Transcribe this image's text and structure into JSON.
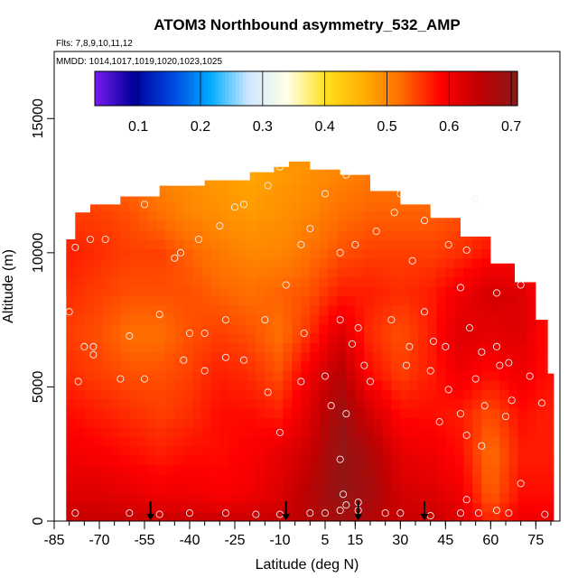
{
  "chart_data": {
    "type": "heatmap",
    "title": "ATOM3 Northbound asymmetry_532_AMP",
    "annotations": [
      "Flts: 7,8,9,10,11,12",
      "MMDD: 1014,1017,1019,1020,1023,1025"
    ],
    "xlabel": "Latitude (deg N)",
    "ylabel": "Altitude (m)",
    "xlim": [
      -85,
      83
    ],
    "ylim": [
      0,
      17500
    ],
    "x_ticks": [
      -85,
      -70,
      -55,
      -40,
      -25,
      -10,
      5,
      15,
      30,
      45,
      60,
      75
    ],
    "x_minor_step": 5,
    "y_ticks": [
      0,
      5000,
      10000,
      15000
    ],
    "colorbar": {
      "range": [
        0.03,
        0.71
      ],
      "ticks": [
        0.1,
        0.2,
        0.3,
        0.4,
        0.5,
        0.6,
        0.7
      ],
      "divisions": [
        0.1,
        0.2,
        0.3,
        0.4,
        0.5,
        0.6,
        0.7
      ],
      "colors": [
        "#7a1cf0",
        "#00009a",
        "#0045e0",
        "#00aaff",
        "#cfe7ff",
        "#ffffe8",
        "#ffe020",
        "#ffae00",
        "#ff6a00",
        "#ff0000",
        "#c00000",
        "#8b1a1a"
      ]
    },
    "grid": false,
    "coverage": [
      [
        -81,
        10500
      ],
      [
        -78,
        11500
      ],
      [
        -73,
        11800
      ],
      [
        -63,
        12100
      ],
      [
        -50,
        12500
      ],
      [
        -35,
        12700
      ],
      [
        -20,
        13000
      ],
      [
        -12,
        13200
      ],
      [
        -7,
        13400
      ],
      [
        0,
        13100
      ],
      [
        10,
        12900
      ],
      [
        20,
        12300
      ],
      [
        30,
        11800
      ],
      [
        40,
        11300
      ],
      [
        50,
        10600
      ],
      [
        60,
        9600
      ],
      [
        68,
        8900
      ],
      [
        75,
        7500
      ],
      [
        79,
        5500
      ]
    ],
    "field": {
      "latitudes": [
        -80,
        -70,
        -60,
        -50,
        -40,
        -30,
        -20,
        -10,
        0,
        10,
        20,
        30,
        40,
        50,
        60,
        70,
        78
      ],
      "altitudes": [
        0,
        1000,
        2500,
        4000,
        5500,
        7000,
        8500,
        10000,
        11500,
        13000
      ],
      "values": [
        [
          0.64,
          0.64,
          0.64,
          0.64,
          0.64,
          0.64,
          0.64,
          0.64,
          0.66,
          0.68,
          0.66,
          0.64,
          0.64,
          0.62,
          0.56,
          0.6,
          0.6
        ],
        [
          0.62,
          0.62,
          0.61,
          0.6,
          0.6,
          0.59,
          0.6,
          0.62,
          0.66,
          0.7,
          0.68,
          0.63,
          0.62,
          0.6,
          0.53,
          0.58,
          0.58
        ],
        [
          0.6,
          0.59,
          0.58,
          0.57,
          0.58,
          0.58,
          0.59,
          0.61,
          0.64,
          0.7,
          0.67,
          0.61,
          0.6,
          0.58,
          0.52,
          0.57,
          0.57
        ],
        [
          0.58,
          0.57,
          0.56,
          0.55,
          0.56,
          0.58,
          0.58,
          0.57,
          0.62,
          0.69,
          0.63,
          0.58,
          0.58,
          0.57,
          0.54,
          0.58,
          0.57
        ],
        [
          0.56,
          0.55,
          0.54,
          0.54,
          0.55,
          0.57,
          0.56,
          0.54,
          0.6,
          0.66,
          0.58,
          0.55,
          0.57,
          0.6,
          0.58,
          0.6,
          0.58
        ],
        [
          0.55,
          0.54,
          0.52,
          0.52,
          0.54,
          0.55,
          0.54,
          0.52,
          0.56,
          0.62,
          0.56,
          0.54,
          0.57,
          0.62,
          0.61,
          0.62,
          0.58
        ],
        [
          0.56,
          0.55,
          0.54,
          0.54,
          0.54,
          0.53,
          0.52,
          0.53,
          0.54,
          0.57,
          0.57,
          0.56,
          0.57,
          0.6,
          0.63,
          0.62,
          0.58
        ],
        [
          0.57,
          0.56,
          0.55,
          0.55,
          0.53,
          0.51,
          0.5,
          0.5,
          0.52,
          0.54,
          0.55,
          0.55,
          0.55,
          0.56,
          0.58,
          0.58,
          0.56
        ],
        [
          0.55,
          0.55,
          0.54,
          0.52,
          0.5,
          0.49,
          0.48,
          0.49,
          0.5,
          0.52,
          0.53,
          0.53,
          0.53,
          0.54,
          0.55,
          0.55,
          0.55
        ],
        [
          0.53,
          0.53,
          0.52,
          0.5,
          0.49,
          0.48,
          0.47,
          0.48,
          0.49,
          0.5,
          0.51,
          0.51,
          0.51,
          0.52,
          0.53,
          0.53,
          0.53
        ]
      ]
    },
    "flight_samples": [
      [
        -78,
        10200
      ],
      [
        -73,
        10500
      ],
      [
        -68,
        10500
      ],
      [
        -55,
        11800
      ],
      [
        -45,
        9800
      ],
      [
        -43,
        10000
      ],
      [
        -37,
        10500
      ],
      [
        -30,
        11000
      ],
      [
        -25,
        11700
      ],
      [
        -22,
        11800
      ],
      [
        -14,
        12500
      ],
      [
        -10,
        13200
      ],
      [
        -3,
        10300
      ],
      [
        0,
        10900
      ],
      [
        5,
        12200
      ],
      [
        10,
        10000
      ],
      [
        12,
        12900
      ],
      [
        15,
        10300
      ],
      [
        22,
        10800
      ],
      [
        28,
        11500
      ],
      [
        30,
        12200
      ],
      [
        34,
        9700
      ],
      [
        38,
        11200
      ],
      [
        46,
        10300
      ],
      [
        52,
        10100
      ],
      [
        55,
        12000
      ],
      [
        62,
        8500
      ],
      [
        -80,
        7800
      ],
      [
        -75,
        6500
      ],
      [
        -72,
        6500
      ],
      [
        -60,
        6900
      ],
      [
        -50,
        7700
      ],
      [
        -40,
        7000
      ],
      [
        -35,
        7000
      ],
      [
        -28,
        7500
      ],
      [
        -15,
        7500
      ],
      [
        -8,
        8800
      ],
      [
        -2,
        7000
      ],
      [
        5,
        5400
      ],
      [
        10,
        7500
      ],
      [
        14,
        6600
      ],
      [
        16,
        7200
      ],
      [
        18,
        5800
      ],
      [
        27,
        7500
      ],
      [
        33,
        6500
      ],
      [
        38,
        7800
      ],
      [
        41,
        6700
      ],
      [
        45,
        6500
      ],
      [
        50,
        8700
      ],
      [
        53,
        7200
      ],
      [
        57,
        6300
      ],
      [
        62,
        6500
      ],
      [
        66,
        5900
      ],
      [
        70,
        8800
      ],
      [
        -77,
        5200
      ],
      [
        -72,
        6200
      ],
      [
        -63,
        5300
      ],
      [
        -55,
        5300
      ],
      [
        -42,
        6000
      ],
      [
        -35,
        5600
      ],
      [
        -28,
        6100
      ],
      [
        -22,
        6000
      ],
      [
        -14,
        4800
      ],
      [
        -3,
        5200
      ],
      [
        7,
        4300
      ],
      [
        12,
        4000
      ],
      [
        20,
        5200
      ],
      [
        32,
        5800
      ],
      [
        40,
        5600
      ],
      [
        46,
        4900
      ],
      [
        50,
        4000
      ],
      [
        55,
        5300
      ],
      [
        58,
        4300
      ],
      [
        63,
        5800
      ],
      [
        67,
        4500
      ],
      [
        73,
        5400
      ],
      [
        77,
        4400
      ],
      [
        -10,
        3300
      ],
      [
        10,
        2300
      ],
      [
        43,
        3700
      ],
      [
        52,
        3200
      ],
      [
        57,
        2800
      ],
      [
        65,
        3900
      ],
      [
        -78,
        300
      ],
      [
        -60,
        300
      ],
      [
        -50,
        250
      ],
      [
        -40,
        300
      ],
      [
        -28,
        300
      ],
      [
        -18,
        250
      ],
      [
        -10,
        250
      ],
      [
        0,
        300
      ],
      [
        5,
        300
      ],
      [
        10,
        400
      ],
      [
        11,
        1000
      ],
      [
        12,
        600
      ],
      [
        16,
        700
      ],
      [
        16,
        400
      ],
      [
        25,
        300
      ],
      [
        30,
        300
      ],
      [
        40,
        200
      ],
      [
        50,
        300
      ],
      [
        52,
        800
      ],
      [
        56,
        300
      ],
      [
        62,
        400
      ],
      [
        66,
        300
      ],
      [
        70,
        1400
      ],
      [
        78,
        250
      ]
    ],
    "arrows": [
      -53,
      -8,
      16,
      38
    ]
  }
}
